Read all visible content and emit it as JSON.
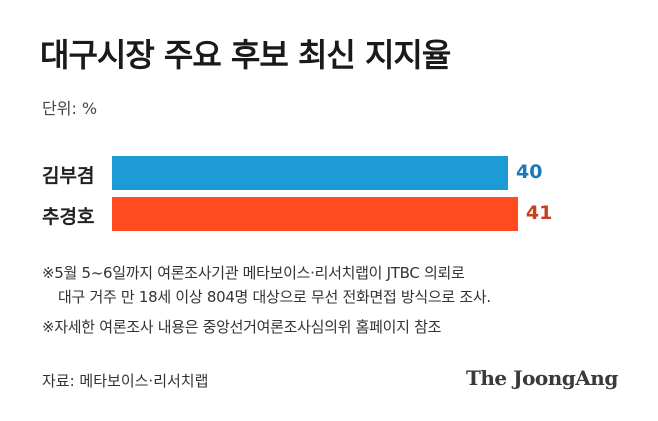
{
  "header": {
    "title": "대구시장 주요 후보 최신 지지율",
    "unit": "단위: %"
  },
  "chart_data": {
    "type": "bar",
    "orientation": "horizontal",
    "categories": [
      "김부겸",
      "추경호"
    ],
    "values": [
      40,
      41
    ],
    "value_labels": [
      "40",
      "41"
    ],
    "colors": [
      "#1c9bd6",
      "#ff4b1f"
    ],
    "label_colors": [
      "#1c78b8",
      "#c8401a"
    ],
    "title": "대구시장 주요 후보 최신 지지율",
    "unit": "단위: %"
  },
  "notes": [
    "※5월 5~6일까지 여론조사기관 메타보이스·리서치랩이 JTBC 의뢰로",
    "대구 거주 만 18세 이상 804명 대상으로 무선 전화면접 방식으로 조사.",
    "※자세한 여론조사 내용은 중앙선거여론조사심의위 홈페이지 참조"
  ],
  "footer": {
    "source": "자료: 메타보이스·리서치랩",
    "logo": "The JoongAng"
  }
}
